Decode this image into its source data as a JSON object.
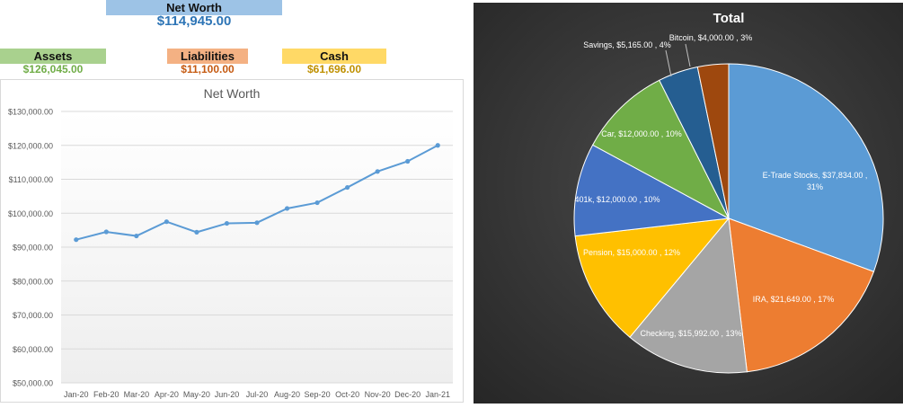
{
  "summary": {
    "net_worth": {
      "label": "Net Worth",
      "value": "$114,945.00"
    },
    "assets": {
      "label": "Assets",
      "value": "$126,045.00"
    },
    "liabilities": {
      "label": "Liabilities",
      "value": "$11,100.00"
    },
    "cash": {
      "label": "Cash",
      "value": "$61,696.00"
    }
  },
  "colors": {
    "line": "#5b9bd5",
    "pie_bg": "#3a3a3a"
  },
  "chart_data": [
    {
      "type": "line",
      "title": "Net Worth",
      "xlabel": "",
      "ylabel": "",
      "categories": [
        "Jan-20",
        "Feb-20",
        "Mar-20",
        "Apr-20",
        "May-20",
        "Jun-20",
        "Jul-20",
        "Aug-20",
        "Sep-20",
        "Oct-20",
        "Nov-20",
        "Dec-20",
        "Jan-21"
      ],
      "values": [
        92200,
        94500,
        93300,
        97500,
        94400,
        97000,
        97200,
        101400,
        103100,
        107600,
        112300,
        115300,
        120000
      ],
      "ylim": [
        50000,
        130000
      ],
      "yticks": [
        "$50,000.00",
        "$60,000.00",
        "$70,000.00",
        "$80,000.00",
        "$90,000.00",
        "$100,000.00",
        "$110,000.00",
        "$120,000.00",
        "$130,000.00"
      ],
      "grid": true
    },
    {
      "type": "pie",
      "title": "Total",
      "slices": [
        {
          "name": "E-Trade Stocks",
          "value": 37834,
          "label": "E-Trade Stocks,  $37,834.00 ,",
          "pct": "31%",
          "color": "#5b9bd5"
        },
        {
          "name": "IRA",
          "value": 21649,
          "label": "IRA,  $21,649.00 , 17%",
          "pct": "",
          "color": "#ed7d31"
        },
        {
          "name": "Checking",
          "value": 15992,
          "label": "Checking,  $15,992.00 , 13%",
          "pct": "",
          "color": "#a5a5a5"
        },
        {
          "name": "Pension",
          "value": 15000,
          "label": "Pension,  $15,000.00 , 12%",
          "pct": "",
          "color": "#ffc000"
        },
        {
          "name": "401k",
          "value": 12000,
          "label": "401k,  $12,000.00 , 10%",
          "pct": "",
          "color": "#4472c4"
        },
        {
          "name": "Car",
          "value": 12000,
          "label": "Car,  $12,000.00 , 10%",
          "pct": "",
          "color": "#70ad47"
        },
        {
          "name": "Savings",
          "value": 5165,
          "label": "Savings,  $5,165.00 , 4%",
          "pct": "",
          "color": "#255e91"
        },
        {
          "name": "Bitcoin",
          "value": 4000,
          "label": "Bitcoin,  $4,000.00 , 3%",
          "pct": "",
          "color": "#9e480e"
        }
      ]
    }
  ]
}
